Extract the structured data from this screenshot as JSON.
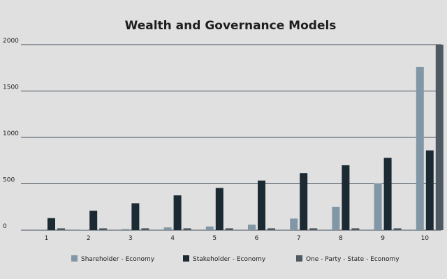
{
  "chart_data": {
    "type": "bar",
    "title": "Wealth and Governance Models",
    "categories": [
      "1",
      "2",
      "3",
      "4",
      "5",
      "6",
      "7",
      "8",
      "9",
      "10"
    ],
    "series": [
      {
        "name": "Shareholder - Economy",
        "values": [
          1,
          3,
          13,
          30,
          40,
          60,
          125,
          250,
          505,
          1760
        ]
      },
      {
        "name": "Stakeholder - Economy",
        "values": [
          130,
          210,
          290,
          375,
          455,
          535,
          615,
          700,
          780,
          860
        ]
      },
      {
        "name": "One - Party - State - Economy",
        "values": [
          20,
          20,
          20,
          20,
          20,
          20,
          20,
          20,
          20,
          2000
        ]
      }
    ],
    "ylim": [
      0,
      2000
    ],
    "yticks": [
      0,
      500,
      1000,
      1500,
      2000
    ],
    "grid": true,
    "legend_position": "bottom",
    "colors": {
      "series": [
        "#8197a6",
        "#1c2a33",
        "#4e5962"
      ],
      "background": "#e0e0e0",
      "gridline": "#44505a"
    }
  }
}
